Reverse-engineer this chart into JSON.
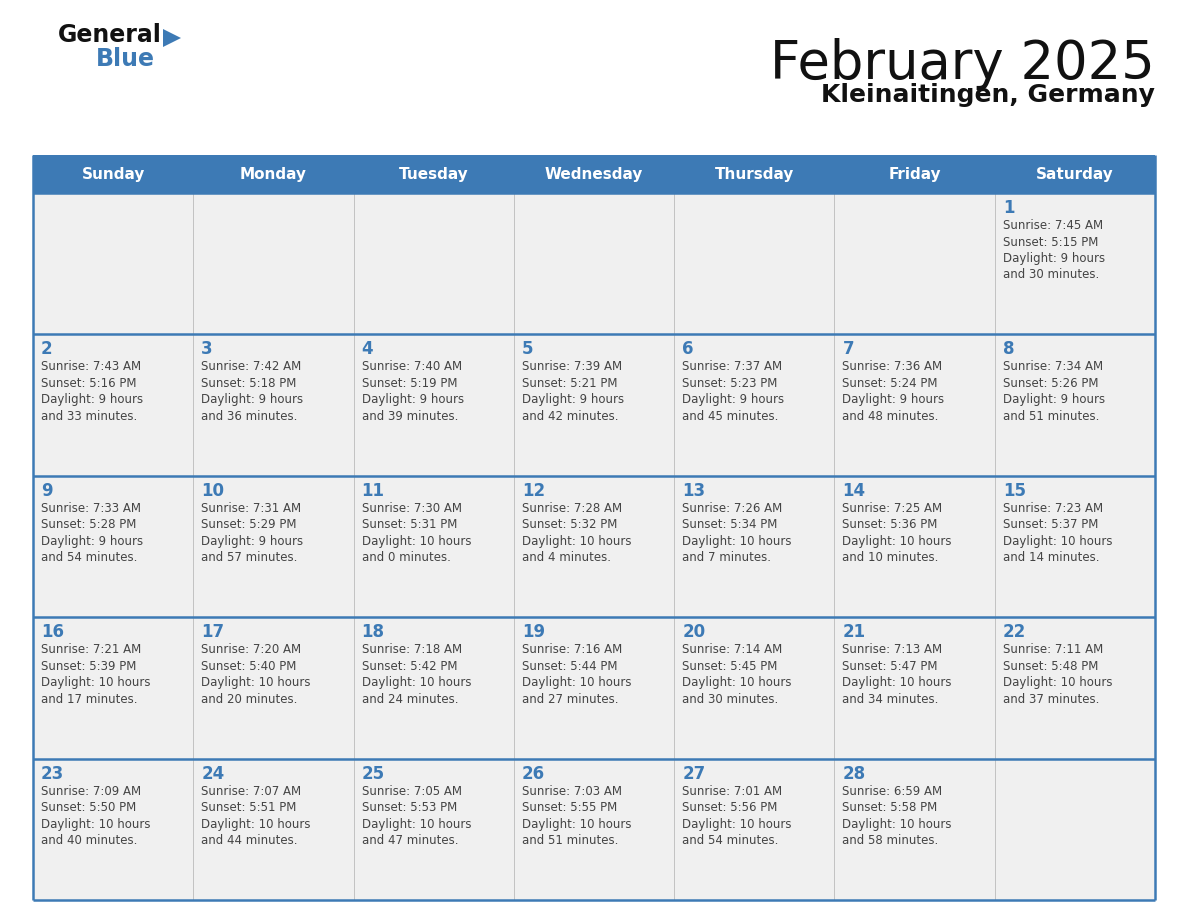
{
  "title": "February 2025",
  "subtitle": "Kleinaitingen, Germany",
  "header_color": "#3d7ab5",
  "header_text_color": "#ffffff",
  "cell_bg_color": "#f0f0f0",
  "day_number_color": "#3d7ab5",
  "text_color": "#444444",
  "line_color": "#3d7ab5",
  "days_of_week": [
    "Sunday",
    "Monday",
    "Tuesday",
    "Wednesday",
    "Thursday",
    "Friday",
    "Saturday"
  ],
  "weeks": [
    [
      {
        "day": null,
        "info": null
      },
      {
        "day": null,
        "info": null
      },
      {
        "day": null,
        "info": null
      },
      {
        "day": null,
        "info": null
      },
      {
        "day": null,
        "info": null
      },
      {
        "day": null,
        "info": null
      },
      {
        "day": 1,
        "info": "Sunrise: 7:45 AM\nSunset: 5:15 PM\nDaylight: 9 hours\nand 30 minutes."
      }
    ],
    [
      {
        "day": 2,
        "info": "Sunrise: 7:43 AM\nSunset: 5:16 PM\nDaylight: 9 hours\nand 33 minutes."
      },
      {
        "day": 3,
        "info": "Sunrise: 7:42 AM\nSunset: 5:18 PM\nDaylight: 9 hours\nand 36 minutes."
      },
      {
        "day": 4,
        "info": "Sunrise: 7:40 AM\nSunset: 5:19 PM\nDaylight: 9 hours\nand 39 minutes."
      },
      {
        "day": 5,
        "info": "Sunrise: 7:39 AM\nSunset: 5:21 PM\nDaylight: 9 hours\nand 42 minutes."
      },
      {
        "day": 6,
        "info": "Sunrise: 7:37 AM\nSunset: 5:23 PM\nDaylight: 9 hours\nand 45 minutes."
      },
      {
        "day": 7,
        "info": "Sunrise: 7:36 AM\nSunset: 5:24 PM\nDaylight: 9 hours\nand 48 minutes."
      },
      {
        "day": 8,
        "info": "Sunrise: 7:34 AM\nSunset: 5:26 PM\nDaylight: 9 hours\nand 51 minutes."
      }
    ],
    [
      {
        "day": 9,
        "info": "Sunrise: 7:33 AM\nSunset: 5:28 PM\nDaylight: 9 hours\nand 54 minutes."
      },
      {
        "day": 10,
        "info": "Sunrise: 7:31 AM\nSunset: 5:29 PM\nDaylight: 9 hours\nand 57 minutes."
      },
      {
        "day": 11,
        "info": "Sunrise: 7:30 AM\nSunset: 5:31 PM\nDaylight: 10 hours\nand 0 minutes."
      },
      {
        "day": 12,
        "info": "Sunrise: 7:28 AM\nSunset: 5:32 PM\nDaylight: 10 hours\nand 4 minutes."
      },
      {
        "day": 13,
        "info": "Sunrise: 7:26 AM\nSunset: 5:34 PM\nDaylight: 10 hours\nand 7 minutes."
      },
      {
        "day": 14,
        "info": "Sunrise: 7:25 AM\nSunset: 5:36 PM\nDaylight: 10 hours\nand 10 minutes."
      },
      {
        "day": 15,
        "info": "Sunrise: 7:23 AM\nSunset: 5:37 PM\nDaylight: 10 hours\nand 14 minutes."
      }
    ],
    [
      {
        "day": 16,
        "info": "Sunrise: 7:21 AM\nSunset: 5:39 PM\nDaylight: 10 hours\nand 17 minutes."
      },
      {
        "day": 17,
        "info": "Sunrise: 7:20 AM\nSunset: 5:40 PM\nDaylight: 10 hours\nand 20 minutes."
      },
      {
        "day": 18,
        "info": "Sunrise: 7:18 AM\nSunset: 5:42 PM\nDaylight: 10 hours\nand 24 minutes."
      },
      {
        "day": 19,
        "info": "Sunrise: 7:16 AM\nSunset: 5:44 PM\nDaylight: 10 hours\nand 27 minutes."
      },
      {
        "day": 20,
        "info": "Sunrise: 7:14 AM\nSunset: 5:45 PM\nDaylight: 10 hours\nand 30 minutes."
      },
      {
        "day": 21,
        "info": "Sunrise: 7:13 AM\nSunset: 5:47 PM\nDaylight: 10 hours\nand 34 minutes."
      },
      {
        "day": 22,
        "info": "Sunrise: 7:11 AM\nSunset: 5:48 PM\nDaylight: 10 hours\nand 37 minutes."
      }
    ],
    [
      {
        "day": 23,
        "info": "Sunrise: 7:09 AM\nSunset: 5:50 PM\nDaylight: 10 hours\nand 40 minutes."
      },
      {
        "day": 24,
        "info": "Sunrise: 7:07 AM\nSunset: 5:51 PM\nDaylight: 10 hours\nand 44 minutes."
      },
      {
        "day": 25,
        "info": "Sunrise: 7:05 AM\nSunset: 5:53 PM\nDaylight: 10 hours\nand 47 minutes."
      },
      {
        "day": 26,
        "info": "Sunrise: 7:03 AM\nSunset: 5:55 PM\nDaylight: 10 hours\nand 51 minutes."
      },
      {
        "day": 27,
        "info": "Sunrise: 7:01 AM\nSunset: 5:56 PM\nDaylight: 10 hours\nand 54 minutes."
      },
      {
        "day": 28,
        "info": "Sunrise: 6:59 AM\nSunset: 5:58 PM\nDaylight: 10 hours\nand 58 minutes."
      },
      {
        "day": null,
        "info": null
      }
    ]
  ]
}
